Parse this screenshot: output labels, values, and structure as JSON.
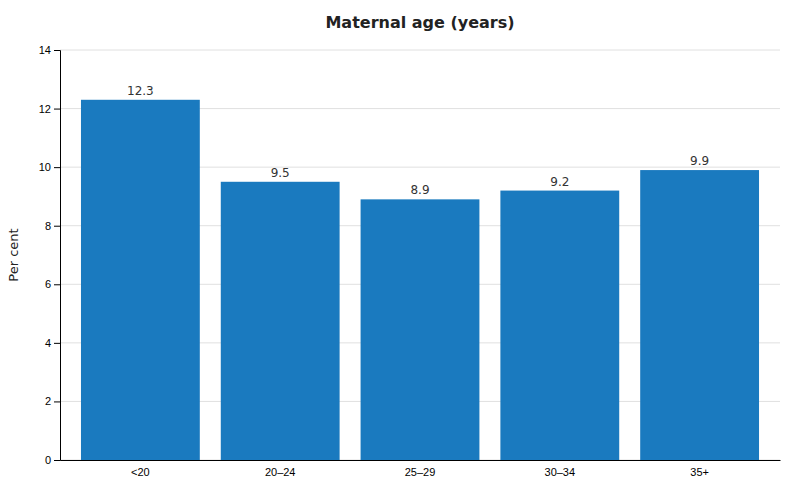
{
  "chart_data": {
    "type": "bar",
    "title": "Maternal age (years)",
    "ylabel": "Per cent",
    "categories": [
      "<20",
      "20–24",
      "25–29",
      "30–34",
      "35+"
    ],
    "values": [
      12.3,
      9.5,
      8.9,
      9.2,
      9.9
    ],
    "color": "#1a7abf",
    "ylim": [
      0,
      14
    ],
    "yticks": [
      0,
      2,
      4,
      6,
      8,
      10,
      12,
      14
    ],
    "grid": true,
    "data_labels": true
  }
}
